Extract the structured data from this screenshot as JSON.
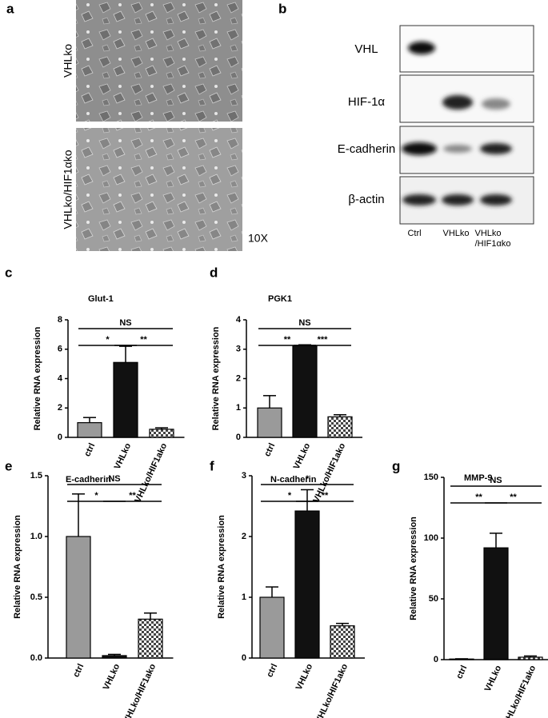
{
  "panel_a": {
    "letter": "a",
    "labels": [
      "VHLko",
      "VHLko/HIF1αko"
    ],
    "magnification": "10X"
  },
  "panel_b": {
    "letter": "b",
    "rows": [
      "VHL",
      "HIF-1α",
      "E-cadherin",
      "β-actin"
    ],
    "lanes": [
      [
        "Ctrl"
      ],
      [
        "VHLko"
      ],
      [
        "VHLko",
        "/HIF1αko"
      ]
    ]
  },
  "chart_data": [
    {
      "type": "bar",
      "panel": "c",
      "title": "Glut-1",
      "y_label": "Relative RNA expression",
      "categories": [
        "ctrl",
        "VHLko",
        "VHLko/HIF1ako"
      ],
      "values": [
        1.0,
        5.1,
        0.55
      ],
      "errors": [
        0.35,
        1.1,
        0.1
      ],
      "colors": [
        "#9a9a9a",
        "#111111",
        "checker"
      ],
      "ylim": [
        0,
        8
      ],
      "yticks": [
        0,
        2,
        4,
        6,
        8
      ],
      "annotations": [
        {
          "text": "NS",
          "span": [
            0,
            2
          ]
        },
        {
          "text": "*",
          "span": [
            0,
            1
          ]
        },
        {
          "text": "**",
          "span": [
            1,
            2
          ]
        }
      ]
    },
    {
      "type": "bar",
      "panel": "d",
      "title": "PGK1",
      "y_label": "Relative RNA expression",
      "categories": [
        "ctrl",
        "VHLko",
        "VHLko/HIF1ako"
      ],
      "values": [
        1.0,
        3.12,
        0.7
      ],
      "errors": [
        0.42,
        0.03,
        0.07
      ],
      "colors": [
        "#9a9a9a",
        "#111111",
        "checker"
      ],
      "ylim": [
        0,
        4
      ],
      "yticks": [
        0,
        1,
        2,
        3,
        4
      ],
      "annotations": [
        {
          "text": "NS",
          "span": [
            0,
            2
          ]
        },
        {
          "text": "**",
          "span": [
            0,
            1
          ]
        },
        {
          "text": "***",
          "span": [
            1,
            2
          ]
        }
      ]
    },
    {
      "type": "bar",
      "panel": "e",
      "title": "E-cadherin",
      "y_label": "Relative RNA expression",
      "categories": [
        "ctrl",
        "VHLko",
        "VHLko/HIF1ako"
      ],
      "values": [
        1.0,
        0.02,
        0.32
      ],
      "errors": [
        0.35,
        0.01,
        0.05
      ],
      "colors": [
        "#9a9a9a",
        "#111111",
        "checker"
      ],
      "ylim": [
        0,
        1.5
      ],
      "yticks": [
        {
          "value": 0,
          "label": "0.0"
        },
        0.5,
        {
          "value": 1,
          "label": "1.0"
        },
        1.5
      ],
      "annotations": [
        {
          "text": "NS",
          "span": [
            0,
            2
          ]
        },
        {
          "text": "*",
          "span": [
            0,
            1
          ]
        },
        {
          "text": "**",
          "span": [
            1,
            2
          ]
        }
      ]
    },
    {
      "type": "bar",
      "panel": "f",
      "title": "N-cadherin",
      "y_label": "Relative RNA expression",
      "categories": [
        "ctrl",
        "VHLko",
        "VHLko/HIF1ako"
      ],
      "values": [
        1.0,
        2.42,
        0.53
      ],
      "errors": [
        0.17,
        0.35,
        0.04
      ],
      "colors": [
        "#9a9a9a",
        "#111111",
        "checker"
      ],
      "ylim": [
        0,
        3
      ],
      "yticks": [
        0,
        1,
        2,
        3
      ],
      "annotations": [
        {
          "text": "*",
          "span": [
            0,
            2
          ]
        },
        {
          "text": "*",
          "span": [
            0,
            1
          ]
        },
        {
          "text": "**",
          "span": [
            1,
            2
          ]
        }
      ]
    },
    {
      "type": "bar",
      "panel": "g",
      "title": "MMP-9",
      "y_label": "Relative RNA expression",
      "categories": [
        "ctrl",
        "VHLko",
        "VHLko/HIF1ako"
      ],
      "values": [
        0.5,
        92,
        2
      ],
      "errors": [
        0.2,
        12,
        1
      ],
      "colors": [
        "#9a9a9a",
        "#111111",
        "checker"
      ],
      "ylim": [
        0,
        150
      ],
      "yticks": [
        0,
        50,
        100,
        150
      ],
      "annotations": [
        {
          "text": "NS",
          "span": [
            0,
            2
          ]
        },
        {
          "text": "**",
          "span": [
            0,
            1
          ]
        },
        {
          "text": "**",
          "span": [
            1,
            2
          ]
        }
      ]
    }
  ]
}
